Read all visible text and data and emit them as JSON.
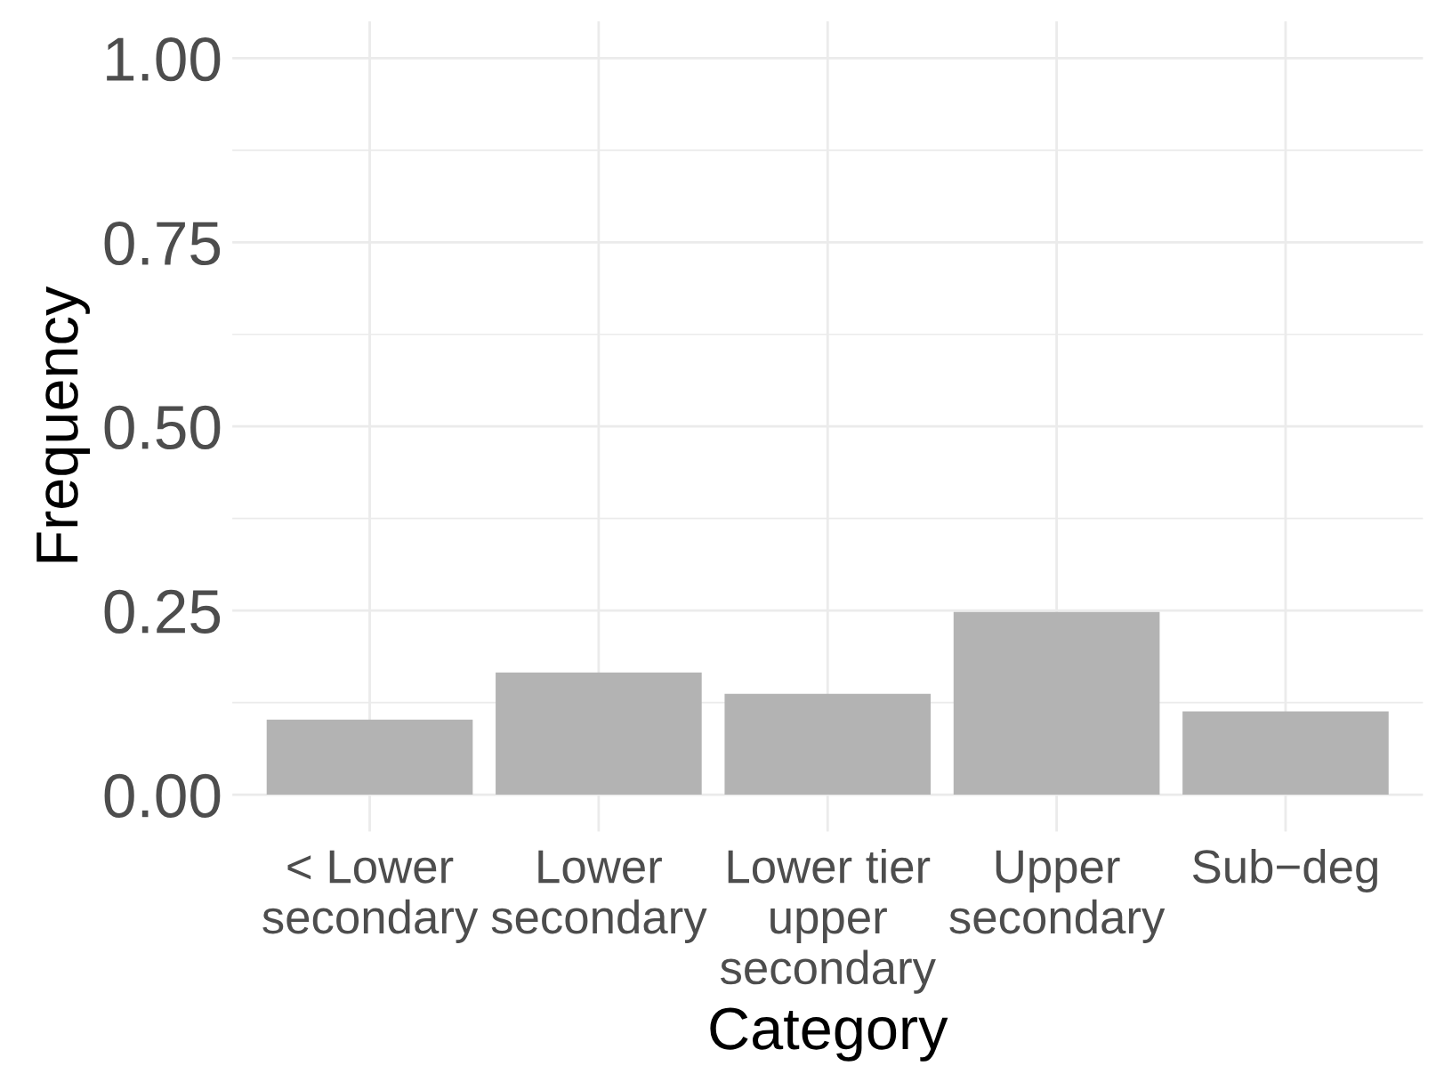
{
  "chart_data": {
    "type": "bar",
    "xlabel": "Category",
    "ylabel": "Frequency",
    "categories": [
      "< Lower\nsecondary",
      "Lower\nsecondary",
      "Lower tier\nupper\nsecondary",
      "Upper\nsecondary",
      "Sub−deg"
    ],
    "values": [
      0.102,
      0.166,
      0.137,
      0.248,
      0.113
    ],
    "color": "#b3b3b3",
    "ylim": [
      -0.05,
      1.05
    ],
    "yticks": [
      {
        "value": 0,
        "label": "0.00"
      },
      {
        "value": 0.25,
        "label": "0.25"
      },
      {
        "value": 0.5,
        "label": "0.50"
      },
      {
        "value": 0.75,
        "label": "0.75"
      },
      {
        "value": 1,
        "label": "1.00"
      }
    ],
    "grid": true
  }
}
